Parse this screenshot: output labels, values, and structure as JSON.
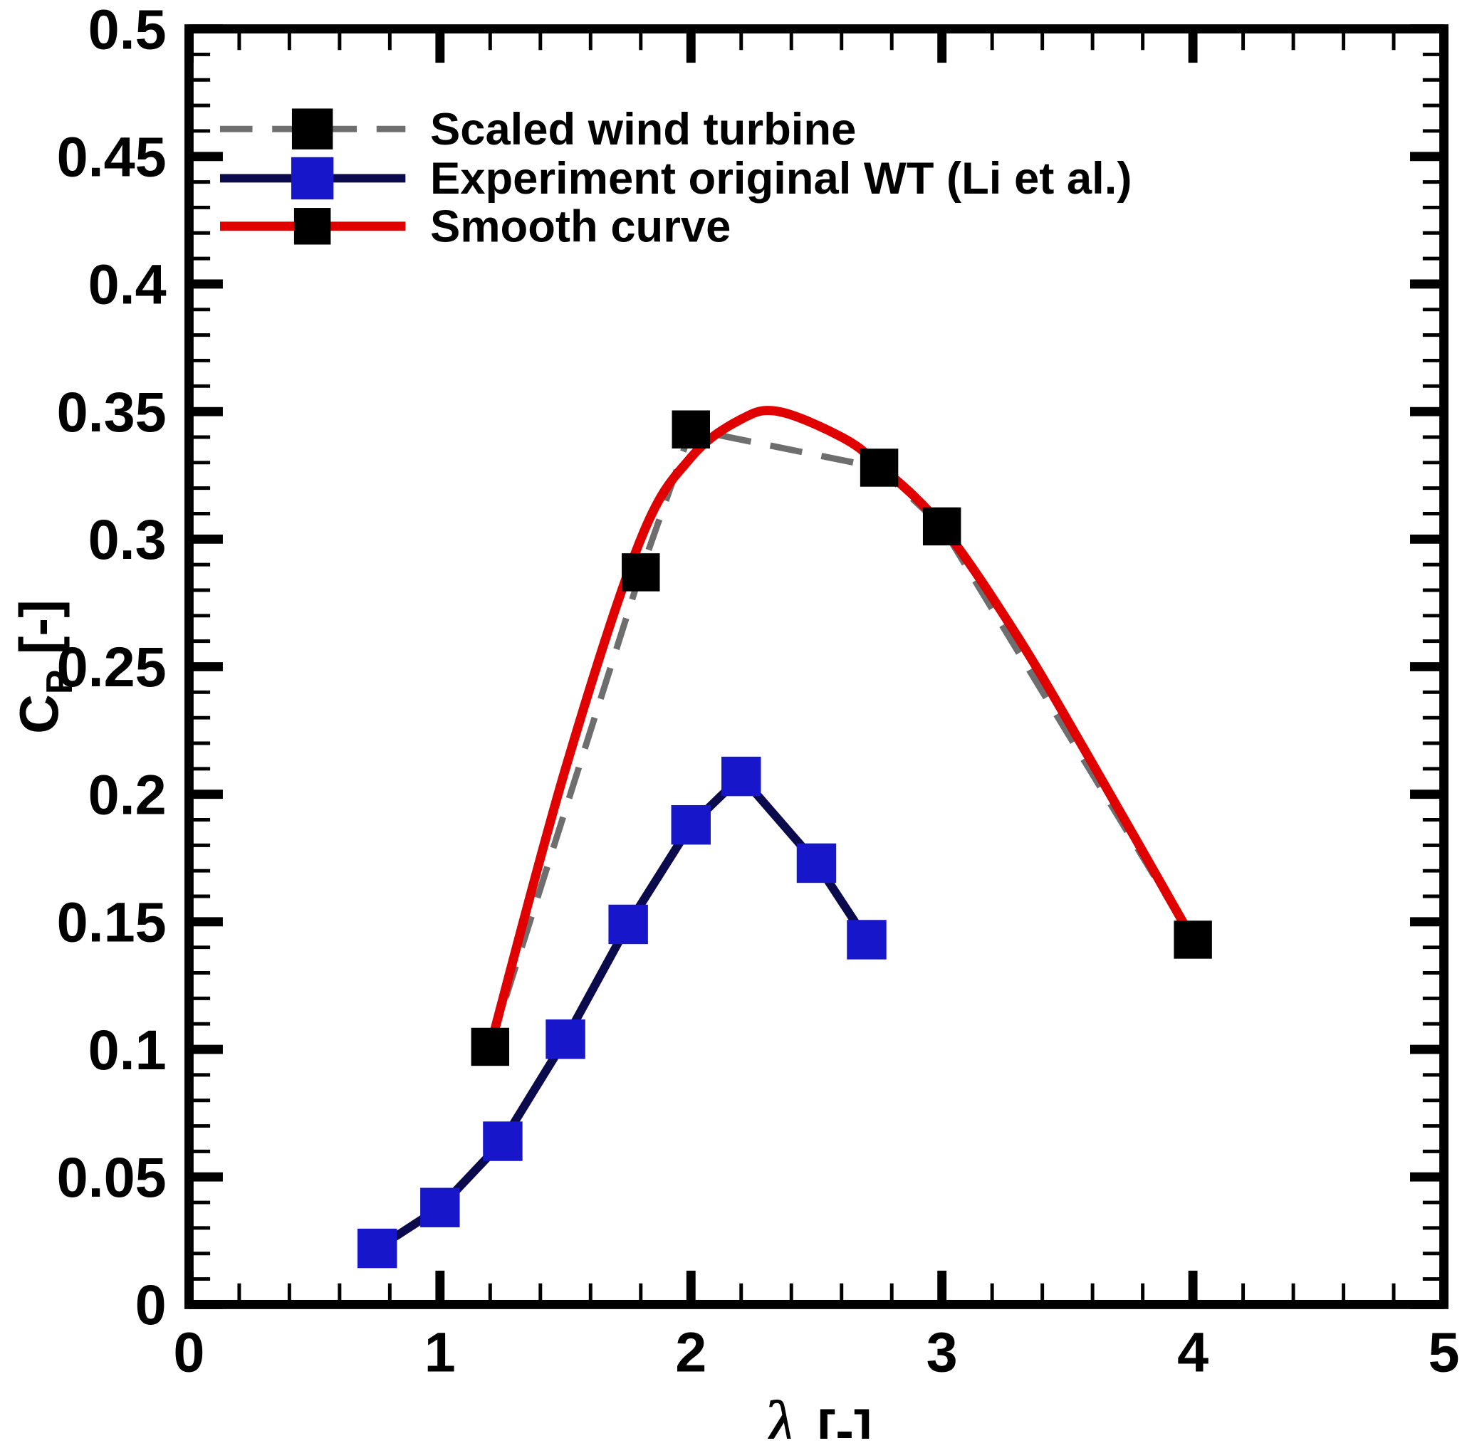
{
  "page": {
    "background": "#ffffff"
  },
  "chart_data": {
    "type": "line",
    "title": "",
    "xlabel_symbol": "λ",
    "xlabel_units": "[-]",
    "ylabel_main": "C",
    "ylabel_sub": "P",
    "ylabel_units": "[-]",
    "grid": false,
    "legend_position": "top-left-inside",
    "x_axis": {
      "min": 0,
      "max": 5,
      "major_step": 1,
      "minor_step": 0.2,
      "tick_labels": [
        "0",
        "1",
        "2",
        "3",
        "4",
        "5"
      ]
    },
    "y_axis": {
      "min": 0,
      "max": 0.5,
      "major_step": 0.05,
      "minor_step": 0.01,
      "tick_labels": [
        "0",
        "0.05",
        "0.1",
        "0.15",
        "0.2",
        "0.25",
        "0.3",
        "0.35",
        "0.4",
        "0.45",
        "0.5"
      ]
    },
    "series": [
      {
        "name": "Scaled wind turbine",
        "type": "line+marker",
        "line_style": "dashed",
        "line_color": "#6e6e6e",
        "marker": "square",
        "marker_color": "#000000",
        "x": [
          1.2,
          1.8,
          2.0,
          2.75,
          3.0,
          4.0
        ],
        "y": [
          0.101,
          0.287,
          0.343,
          0.328,
          0.305,
          0.143
        ]
      },
      {
        "name": "Experiment original WT (Li et al.)",
        "type": "line+marker",
        "line_style": "solid",
        "line_color": "#0a0a4d",
        "marker": "square",
        "marker_color": "#1816cb",
        "x": [
          0.75,
          1.0,
          1.25,
          1.5,
          1.75,
          2.0,
          2.2,
          2.5,
          2.7
        ],
        "y": [
          0.022,
          0.038,
          0.064,
          0.104,
          0.149,
          0.188,
          0.207,
          0.173,
          0.143
        ]
      },
      {
        "name": "Smooth curve",
        "type": "smooth-line",
        "line_style": "solid",
        "line_color": "#e00000",
        "marker": "square",
        "marker_color": "#000000",
        "legend_marker_only": true,
        "x": [
          1.2,
          1.5,
          1.8,
          2.0,
          2.2,
          2.35,
          2.6,
          2.75,
          3.0,
          3.3,
          3.6,
          4.0
        ],
        "y": [
          0.101,
          0.21,
          0.3,
          0.332,
          0.347,
          0.35,
          0.34,
          0.329,
          0.305,
          0.262,
          0.212,
          0.143
        ]
      }
    ]
  }
}
